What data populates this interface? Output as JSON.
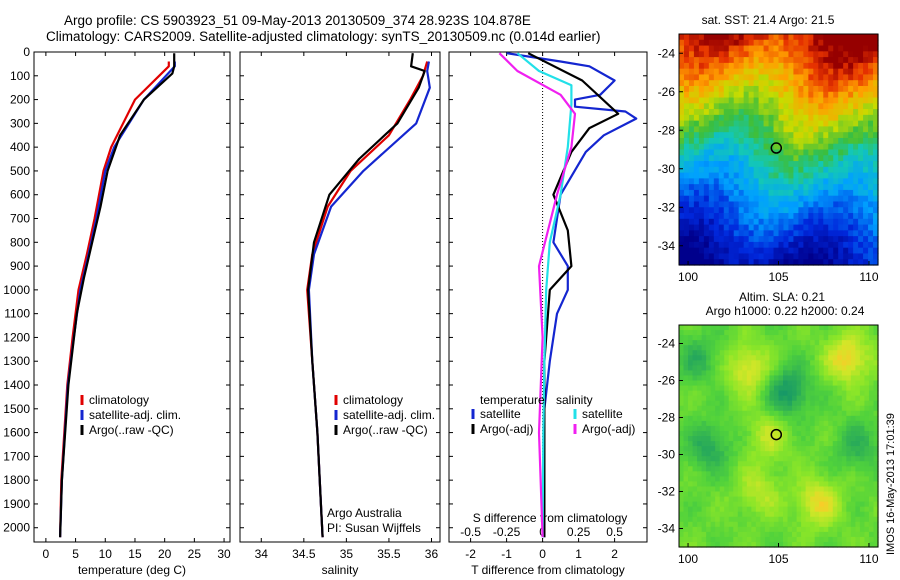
{
  "header": {
    "line1": "Argo profile: CS 5903923_51 09-May-2013 20130509_374 28.923S 104.878E",
    "line2": "Climatology: CARS2009. Satellite-adjusted climatology: synTS_20130509.nc (0.014d earlier)"
  },
  "side_label": "IMOS 16-May-2013 17:01:39",
  "colors": {
    "red": "#e00000",
    "blue": "#1426d0",
    "black": "#000000",
    "cyan": "#22e0e8",
    "magenta": "#f020f0"
  },
  "chart_data": [
    {
      "type": "line",
      "panel": "temperature",
      "xlabel": "temperature (deg C)",
      "xlim": [
        -2,
        31
      ],
      "xticks": [
        0,
        5,
        10,
        15,
        20,
        25,
        30
      ],
      "ylim": [
        2060,
        0
      ],
      "yticks": [
        0,
        100,
        200,
        300,
        400,
        500,
        600,
        700,
        800,
        900,
        1000,
        1100,
        1200,
        1300,
        1400,
        1500,
        1600,
        1700,
        1800,
        1900,
        2000
      ],
      "legend": [
        "climatology",
        "satellite-adj. clim.",
        "Argo(..raw -QC)"
      ],
      "series": [
        {
          "name": "climatology",
          "color": "red",
          "x": [
            20.7,
            20.7,
            15,
            11,
            9.7,
            8.2,
            6.9,
            5.5,
            4.5,
            3.6,
            2.6,
            2.4
          ],
          "y": [
            40,
            60,
            200,
            400,
            500,
            700,
            850,
            1000,
            1200,
            1400,
            1800,
            2040
          ]
        },
        {
          "name": "satellite-adj. clim.",
          "color": "blue",
          "x": [
            21.7,
            21.7,
            16.5,
            11.5,
            10,
            8.5,
            7.2,
            5.8,
            4.7,
            3.7,
            2.7,
            2.4
          ],
          "y": [
            40,
            60,
            200,
            400,
            500,
            700,
            850,
            1000,
            1200,
            1400,
            1800,
            2040
          ]
        },
        {
          "name": "Argo(..raw -QC)",
          "color": "black",
          "x": [
            21.6,
            21.6,
            21.3,
            16.5,
            12.5,
            10.4,
            9.2,
            7.8,
            6.4,
            5.2,
            3.8,
            2.7,
            2.4
          ],
          "y": [
            5,
            60,
            90,
            200,
            350,
            500,
            650,
            800,
            950,
            1100,
            1400,
            1800,
            2040
          ]
        }
      ]
    },
    {
      "type": "line",
      "panel": "salinity",
      "xlabel": "salinity",
      "xlim": [
        33.75,
        36.1
      ],
      "xticks": [
        34,
        34.5,
        35,
        35.5,
        36
      ],
      "xticklabels": [
        "34",
        "34.5",
        "35",
        "35.5",
        "36"
      ],
      "ylim": [
        2060,
        0
      ],
      "legend": [
        "climatology",
        "satellite-adj. clim.",
        "Argo(..raw -QC)"
      ],
      "annotation": [
        "Argo Australia",
        "PI: Susan Wijffels"
      ],
      "series": [
        {
          "name": "climatology",
          "color": "red",
          "x": [
            35.95,
            35.9,
            35.75,
            35.5,
            35.05,
            34.78,
            34.6,
            34.54,
            34.6,
            34.66,
            34.7,
            34.72
          ],
          "y": [
            40,
            100,
            200,
            350,
            500,
            650,
            850,
            1000,
            1300,
            1600,
            1900,
            2040
          ]
        },
        {
          "name": "satellite-adj. clim.",
          "color": "blue",
          "x": [
            35.97,
            35.95,
            35.98,
            35.82,
            35.2,
            34.82,
            34.62,
            34.56,
            34.6,
            34.66,
            34.7,
            34.72
          ],
          "y": [
            40,
            80,
            150,
            300,
            500,
            650,
            850,
            1000,
            1300,
            1600,
            1900,
            2040
          ]
        },
        {
          "name": "Argo(..raw -QC)",
          "color": "black",
          "x": [
            35.78,
            35.76,
            35.92,
            35.85,
            35.6,
            35.15,
            34.8,
            34.62,
            34.55,
            34.6,
            34.66,
            34.7,
            34.72
          ],
          "y": [
            5,
            60,
            80,
            150,
            300,
            450,
            600,
            800,
            1000,
            1300,
            1600,
            1900,
            2040
          ]
        }
      ]
    },
    {
      "type": "line",
      "panel": "difference",
      "xlabel": "T difference from climatology",
      "top_label": "S difference from climatology",
      "xlim": [
        -2.6,
        2.9
      ],
      "xticks": [
        -2,
        -1,
        0,
        1,
        2
      ],
      "s_ticks": [
        -0.5,
        -0.25,
        0,
        0.25,
        0.5
      ],
      "s_ticklabels": [
        "-0.5",
        "-0.25",
        "0",
        "0.25",
        "0.5"
      ],
      "s_scale_per_T": 0.25,
      "ylim": [
        2060,
        0
      ],
      "legend_titles": [
        "temperature",
        "salinity"
      ],
      "legend": [
        "satellite",
        "Argo(-adj)",
        "satellite",
        "Argo(-adj)"
      ],
      "series": [
        {
          "name": "T satellite",
          "color": "blue",
          "x": [
            -1.0,
            0.5,
            1.3,
            2.0,
            1.6,
            0.9,
            0.9,
            2.3,
            2.6,
            1.7,
            1.2,
            0.5,
            0.3,
            0.7,
            0.7,
            0.4,
            0.2,
            0.05,
            0.05
          ],
          "y": [
            5,
            40,
            60,
            120,
            180,
            200,
            230,
            250,
            280,
            350,
            420,
            600,
            800,
            900,
            1000,
            1100,
            1300,
            1500,
            2040
          ]
        },
        {
          "name": "T Argo(-adj)",
          "color": "black",
          "x": [
            -0.4,
            1.1,
            2.1,
            1.3,
            0.8,
            0.3,
            0.7,
            0.8,
            0.2,
            0.05,
            0.05
          ],
          "y": [
            5,
            120,
            260,
            320,
            420,
            600,
            750,
            900,
            1000,
            1300,
            2040
          ]
        },
        {
          "name": "S satellite",
          "color": "cyan",
          "x": [
            -0.7,
            -0.1,
            0.8,
            0.8,
            0.7,
            0.5,
            0.2,
            0.1,
            0.05,
            0.02,
            0.0
          ],
          "y": [
            5,
            80,
            140,
            220,
            400,
            600,
            800,
            1000,
            1300,
            1600,
            2040
          ]
        },
        {
          "name": "S Argo(-adj)",
          "color": "magenta",
          "x": [
            -1.2,
            -0.7,
            0.5,
            0.9,
            0.8,
            0.4,
            -0.1,
            0.0,
            -0.1,
            0.0
          ],
          "y": [
            5,
            80,
            180,
            260,
            400,
            600,
            900,
            1200,
            1600,
            2040
          ]
        }
      ]
    },
    {
      "type": "heatmap",
      "panel": "sst-map",
      "title": "sat. SST: 21.4 Argo: 21.5",
      "xlim": [
        99.5,
        110.5
      ],
      "ylim": [
        -35,
        -23
      ],
      "xticks": [
        100,
        105,
        110
      ],
      "yticks": [
        -24,
        -26,
        -28,
        -30,
        -32,
        -34
      ],
      "marker": {
        "lon": 104.878,
        "lat": -28.923
      }
    },
    {
      "type": "heatmap",
      "panel": "sla-map",
      "title": "Altim. SLA: 0.21",
      "subtitle": "Argo h1000: 0.22 h2000: 0.24",
      "xlim": [
        99.5,
        110.5
      ],
      "ylim": [
        -35,
        -23
      ],
      "xticks": [
        100,
        105,
        110
      ],
      "yticks": [
        -24,
        -26,
        -28,
        -30,
        -32,
        -34
      ],
      "marker": {
        "lon": 104.878,
        "lat": -28.923
      }
    }
  ]
}
